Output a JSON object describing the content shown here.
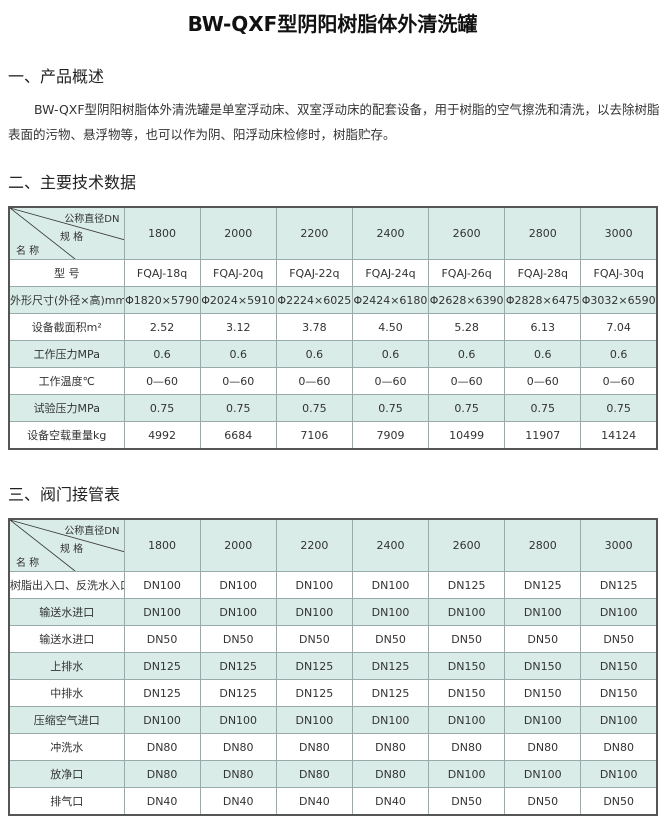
{
  "title": "BW-QXF型阴阳树脂体外清洗罐",
  "section1": {
    "heading": "一、产品概述",
    "text": "BW-QXF型阴阳树脂体外清洗罐是单室浮动床、双室浮动床的配套设备，用于树脂的空气擦洗和清洗，以去除树脂表面的污物、悬浮物等，也可以作为阴、阳浮动床检修时，树脂贮存。"
  },
  "section2": {
    "heading": "二、主要技术数据",
    "corner": {
      "top": "公称直径DN",
      "mid": "规 格",
      "bottom": "名 称"
    },
    "columns": [
      "1800",
      "2000",
      "2200",
      "2400",
      "2600",
      "2800",
      "3000"
    ],
    "rows": [
      {
        "label": "型 号",
        "values": [
          "FQAJ-18q",
          "FQAJ-20q",
          "FQAJ-22q",
          "FQAJ-24q",
          "FQAJ-26q",
          "FQAJ-28q",
          "FQAJ-30q"
        ]
      },
      {
        "label": "外形尺寸(外径×高)mm",
        "values": [
          "Φ1820×5790",
          "Φ2024×5910",
          "Φ2224×6025",
          "Φ2424×6180",
          "Φ2628×6390",
          "Φ2828×6475",
          "Φ3032×6590"
        ]
      },
      {
        "label": "设备截面积m²",
        "values": [
          "2.52",
          "3.12",
          "3.78",
          "4.50",
          "5.28",
          "6.13",
          "7.04"
        ]
      },
      {
        "label": "工作压力MPa",
        "values": [
          "0.6",
          "0.6",
          "0.6",
          "0.6",
          "0.6",
          "0.6",
          "0.6"
        ]
      },
      {
        "label": "工作温度℃",
        "values": [
          "0—60",
          "0—60",
          "0—60",
          "0—60",
          "0—60",
          "0—60",
          "0—60"
        ]
      },
      {
        "label": "试验压力MPa",
        "values": [
          "0.75",
          "0.75",
          "0.75",
          "0.75",
          "0.75",
          "0.75",
          "0.75"
        ]
      },
      {
        "label": "设备空载重量kg",
        "values": [
          "4992",
          "6684",
          "7106",
          "7909",
          "10499",
          "11907",
          "14124"
        ]
      }
    ]
  },
  "section3": {
    "heading": "三、阀门接管表",
    "corner": {
      "top": "公称直径DN",
      "mid": "规 格",
      "bottom": "名 称"
    },
    "columns": [
      "1800",
      "2000",
      "2200",
      "2400",
      "2600",
      "2800",
      "3000"
    ],
    "rows": [
      {
        "label": "树脂出入口、反洗水入口",
        "values": [
          "DN100",
          "DN100",
          "DN100",
          "DN100",
          "DN125",
          "DN125",
          "DN125"
        ]
      },
      {
        "label": "输送水进口",
        "values": [
          "DN100",
          "DN100",
          "DN100",
          "DN100",
          "DN100",
          "DN100",
          "DN100"
        ]
      },
      {
        "label": "输送水进口",
        "values": [
          "DN50",
          "DN50",
          "DN50",
          "DN50",
          "DN50",
          "DN50",
          "DN50"
        ]
      },
      {
        "label": "上排水",
        "values": [
          "DN125",
          "DN125",
          "DN125",
          "DN125",
          "DN150",
          "DN150",
          "DN150"
        ]
      },
      {
        "label": "中排水",
        "values": [
          "DN125",
          "DN125",
          "DN125",
          "DN125",
          "DN150",
          "DN150",
          "DN150"
        ]
      },
      {
        "label": "压缩空气进口",
        "values": [
          "DN100",
          "DN100",
          "DN100",
          "DN100",
          "DN100",
          "DN100",
          "DN100"
        ]
      },
      {
        "label": "冲洗水",
        "values": [
          "DN80",
          "DN80",
          "DN80",
          "DN80",
          "DN80",
          "DN80",
          "DN80"
        ]
      },
      {
        "label": "放净口",
        "values": [
          "DN80",
          "DN80",
          "DN80",
          "DN80",
          "DN100",
          "DN100",
          "DN100"
        ]
      },
      {
        "label": "排气口",
        "values": [
          "DN40",
          "DN40",
          "DN40",
          "DN40",
          "DN50",
          "DN50",
          "DN50"
        ]
      }
    ]
  },
  "colors": {
    "row_tint": "#d9ece7",
    "border": "#555555"
  }
}
